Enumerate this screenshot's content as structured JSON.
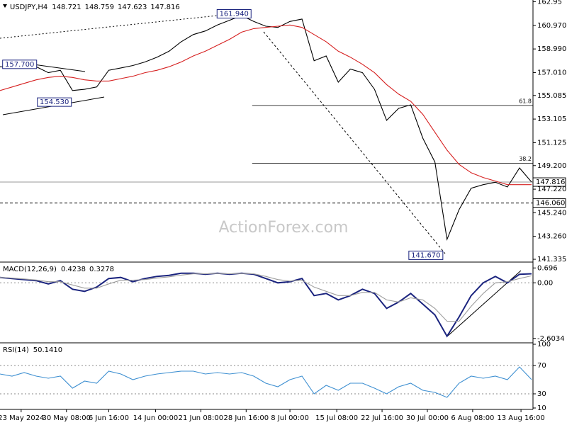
{
  "chart_data": [
    {
      "type": "line",
      "title": "USDJPY,H4",
      "ohlc": [
        148.721,
        148.759,
        147.623,
        147.816
      ],
      "watermark": "ActionForex.com",
      "x": [
        0,
        8,
        16,
        24,
        32,
        40,
        48,
        56,
        64,
        72,
        80,
        88,
        96,
        104,
        112,
        120,
        128,
        136,
        144,
        152,
        160,
        168,
        176,
        184,
        192,
        200,
        208,
        216,
        224,
        232,
        240,
        248,
        256,
        264,
        272,
        280,
        288,
        296,
        304,
        312,
        320,
        328,
        336,
        344,
        352
      ],
      "xlim": [
        0,
        352
      ],
      "ylim": [
        141.1,
        163.1
      ],
      "yticks": [
        162.95,
        {
          "value": 160.97,
          "label": "160.970"
        },
        {
          "value": 158.99,
          "label": "158.990"
        },
        {
          "value": 157.01,
          "label": "157.010"
        },
        155.085,
        153.105,
        151.125,
        {
          "value": 149.2,
          "label": "149.200"
        },
        {
          "value": 147.22,
          "label": "147.220"
        },
        {
          "value": 145.24,
          "label": "145.240"
        },
        {
          "value": 143.26,
          "label": "143.260"
        },
        141.335
      ],
      "series": [
        {
          "name": "Close",
          "color": "#000000",
          "values": [
            157.5,
            157.4,
            157.6,
            157.5,
            157.0,
            157.2,
            155.5,
            155.6,
            155.8,
            157.2,
            157.4,
            157.6,
            157.9,
            158.3,
            158.8,
            159.6,
            160.2,
            160.5,
            161.0,
            161.4,
            161.8,
            161.3,
            160.9,
            160.8,
            161.3,
            161.5,
            158.0,
            158.4,
            156.2,
            157.3,
            157.0,
            155.6,
            153.0,
            154.0,
            154.3,
            151.5,
            149.5,
            143.0,
            145.5,
            147.3,
            147.6,
            147.8,
            147.4,
            149.0,
            147.816
          ]
        },
        {
          "name": "MA",
          "color": "#d62020",
          "values": [
            155.5,
            155.8,
            156.1,
            156.4,
            156.6,
            156.7,
            156.6,
            156.4,
            156.3,
            156.3,
            156.5,
            156.7,
            157.0,
            157.2,
            157.5,
            157.9,
            158.4,
            158.8,
            159.3,
            159.8,
            160.4,
            160.7,
            160.8,
            160.9,
            161.0,
            160.8,
            160.2,
            159.6,
            158.8,
            158.3,
            157.7,
            157.0,
            156.0,
            155.2,
            154.6,
            153.5,
            152.0,
            150.5,
            149.3,
            148.6,
            148.2,
            147.9,
            147.6,
            147.6,
            147.6
          ]
        }
      ],
      "annotations": [
        {
          "x": 155,
          "value": 161.94,
          "label": "161.940"
        },
        {
          "x": 13,
          "value": 157.7,
          "label": "157.700"
        },
        {
          "x": 36,
          "value": 154.53,
          "label": "154.530"
        },
        {
          "x": 282,
          "value": 141.67,
          "label": "141.670"
        }
      ],
      "fib_levels": [
        {
          "ratio": 61.8,
          "price": 154.25,
          "from_x": 167
        },
        {
          "ratio": 38.2,
          "price": 149.4,
          "from_x": 167
        }
      ],
      "current_price": 147.816,
      "support": {
        "value": 146.06,
        "label": "146.060"
      }
    },
    {
      "type": "line",
      "title": "MACD(12,26,9)",
      "readout": [
        0.4238,
        0.3278
      ],
      "ylim": [
        -2.81,
        0.97
      ],
      "yticks": [
        0.696,
        {
          "value": 0,
          "label": "0.00"
        },
        -2.6034
      ],
      "series": [
        {
          "name": "MACD",
          "color": "#1a237e",
          "values": [
            0.25,
            0.2,
            0.15,
            0.1,
            -0.05,
            0.1,
            -0.3,
            -0.4,
            -0.2,
            0.2,
            0.25,
            0.05,
            0.2,
            0.3,
            0.35,
            0.45,
            0.45,
            0.4,
            0.45,
            0.4,
            0.45,
            0.4,
            0.2,
            0.0,
            0.05,
            0.2,
            -0.6,
            -0.5,
            -0.8,
            -0.6,
            -0.3,
            -0.5,
            -1.2,
            -0.9,
            -0.5,
            -1.0,
            -1.5,
            -2.5,
            -1.6,
            -0.6,
            0.0,
            0.3,
            0.0,
            0.4,
            0.4238
          ]
        },
        {
          "name": "Signal",
          "color": "#9e9e9e",
          "values": [
            0.25,
            0.22,
            0.18,
            0.13,
            0.05,
            0.05,
            -0.1,
            -0.25,
            -0.25,
            -0.05,
            0.12,
            0.12,
            0.15,
            0.22,
            0.28,
            0.36,
            0.42,
            0.42,
            0.43,
            0.42,
            0.43,
            0.42,
            0.3,
            0.15,
            0.08,
            0.12,
            -0.2,
            -0.4,
            -0.6,
            -0.6,
            -0.45,
            -0.45,
            -0.8,
            -0.9,
            -0.7,
            -0.8,
            -1.2,
            -1.8,
            -1.8,
            -1.1,
            -0.5,
            0.0,
            0.05,
            0.2,
            0.3278
          ]
        }
      ]
    },
    {
      "type": "line",
      "title": "RSI(14)",
      "readout": [
        {
          "value": 50.141,
          "label": "50.1410"
        }
      ],
      "ylim": [
        8,
        102
      ],
      "yticks": [
        100,
        70,
        30,
        10
      ],
      "xticks": [
        {
          "value": 14,
          "label": "23 May 2024"
        },
        {
          "value": 44,
          "label": "30 May 08:00"
        },
        {
          "value": 72,
          "label": "6 Jun 16:00"
        },
        {
          "value": 103,
          "label": "14 Jun 00:00"
        },
        {
          "value": 133,
          "label": "21 Jun 08:00"
        },
        {
          "value": 163,
          "label": "28 Jun 16:00"
        },
        {
          "value": 192,
          "label": "8 Jul 00:00"
        },
        {
          "value": 223,
          "label": "15 Jul 08:00"
        },
        {
          "value": 253,
          "label": "22 Jul 16:00"
        },
        {
          "value": 283,
          "label": "30 Jul 00:00"
        },
        {
          "value": 313,
          "label": "6 Aug 08:00"
        },
        {
          "value": 345,
          "label": "13 Aug 16:00"
        }
      ],
      "series": [
        {
          "name": "RSI",
          "color": "#3d8fd1",
          "values": [
            58,
            55,
            60,
            55,
            52,
            55,
            38,
            48,
            45,
            62,
            58,
            50,
            55,
            58,
            60,
            62,
            62,
            58,
            60,
            58,
            60,
            55,
            45,
            40,
            50,
            55,
            30,
            42,
            35,
            45,
            45,
            38,
            30,
            40,
            45,
            35,
            32,
            25,
            45,
            55,
            52,
            55,
            50,
            68,
            50.141
          ]
        }
      ]
    }
  ]
}
